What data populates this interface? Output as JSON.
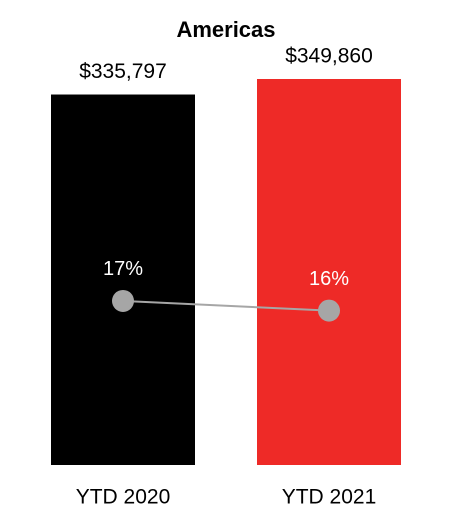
{
  "chart_data": {
    "type": "bar",
    "title": "Americas",
    "categories": [
      "YTD 2020",
      "YTD 2021"
    ],
    "values": [
      335797,
      349860
    ],
    "value_labels": [
      "$335,797",
      "$349,860"
    ],
    "colors": [
      "#000000",
      "#ee2a27"
    ],
    "line": {
      "type": "line",
      "values": [
        17,
        16
      ],
      "value_labels": [
        "17%",
        "16%"
      ],
      "color": "#a6a6a6"
    }
  }
}
